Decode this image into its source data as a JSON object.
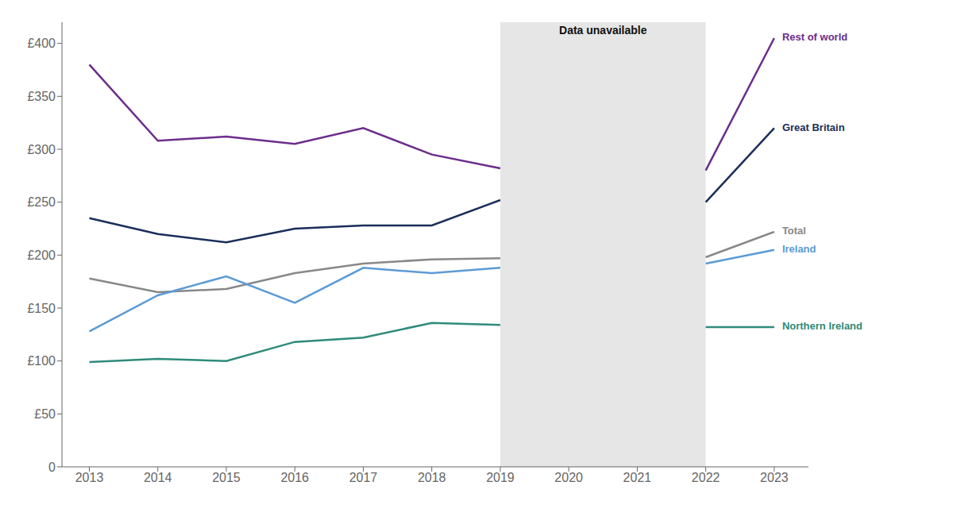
{
  "chart_data": {
    "type": "line",
    "x": [
      2013,
      2014,
      2015,
      2016,
      2017,
      2018,
      2019,
      2020,
      2021,
      2022,
      2023
    ],
    "series": [
      {
        "name": "Rest of world",
        "color": "#6b2d8b",
        "values": [
          380,
          308,
          312,
          305,
          320,
          295,
          282,
          null,
          null,
          280,
          405
        ]
      },
      {
        "name": "Great Britain",
        "color": "#1a2e5a",
        "values": [
          235,
          220,
          212,
          225,
          228,
          228,
          252,
          null,
          null,
          250,
          320
        ]
      },
      {
        "name": "Total",
        "color": "#888888",
        "values": [
          178,
          165,
          168,
          183,
          192,
          196,
          197,
          null,
          null,
          198,
          222
        ]
      },
      {
        "name": "Ireland",
        "color": "#5b9bd5",
        "values": [
          128,
          162,
          180,
          155,
          188,
          183,
          188,
          null,
          null,
          192,
          205
        ]
      },
      {
        "name": "Northern Ireland",
        "color": "#2e8b7a",
        "values": [
          99,
          102,
          100,
          118,
          122,
          136,
          134,
          null,
          null,
          132,
          132
        ]
      }
    ],
    "xlim": [
      2012.6,
      2023.5
    ],
    "xticks": [
      2013,
      2014,
      2015,
      2016,
      2017,
      2018,
      2019,
      2020,
      2021,
      2022,
      2023
    ],
    "ylim": [
      0,
      420
    ],
    "yticks": [
      0,
      {
        "value": 50,
        "label": "£50"
      },
      {
        "value": 100,
        "label": "£100"
      },
      {
        "value": 150,
        "label": "£150"
      },
      {
        "value": 200,
        "label": "£200"
      },
      {
        "value": 250,
        "label": "£250"
      },
      {
        "value": 300,
        "label": "£300"
      },
      {
        "value": 350,
        "label": "£350"
      },
      {
        "value": 400,
        "label": "£400"
      }
    ],
    "grid": false,
    "annotations": [
      {
        "text": "Data unavailable",
        "x_start": 2019,
        "x_end": 2022
      }
    ]
  }
}
